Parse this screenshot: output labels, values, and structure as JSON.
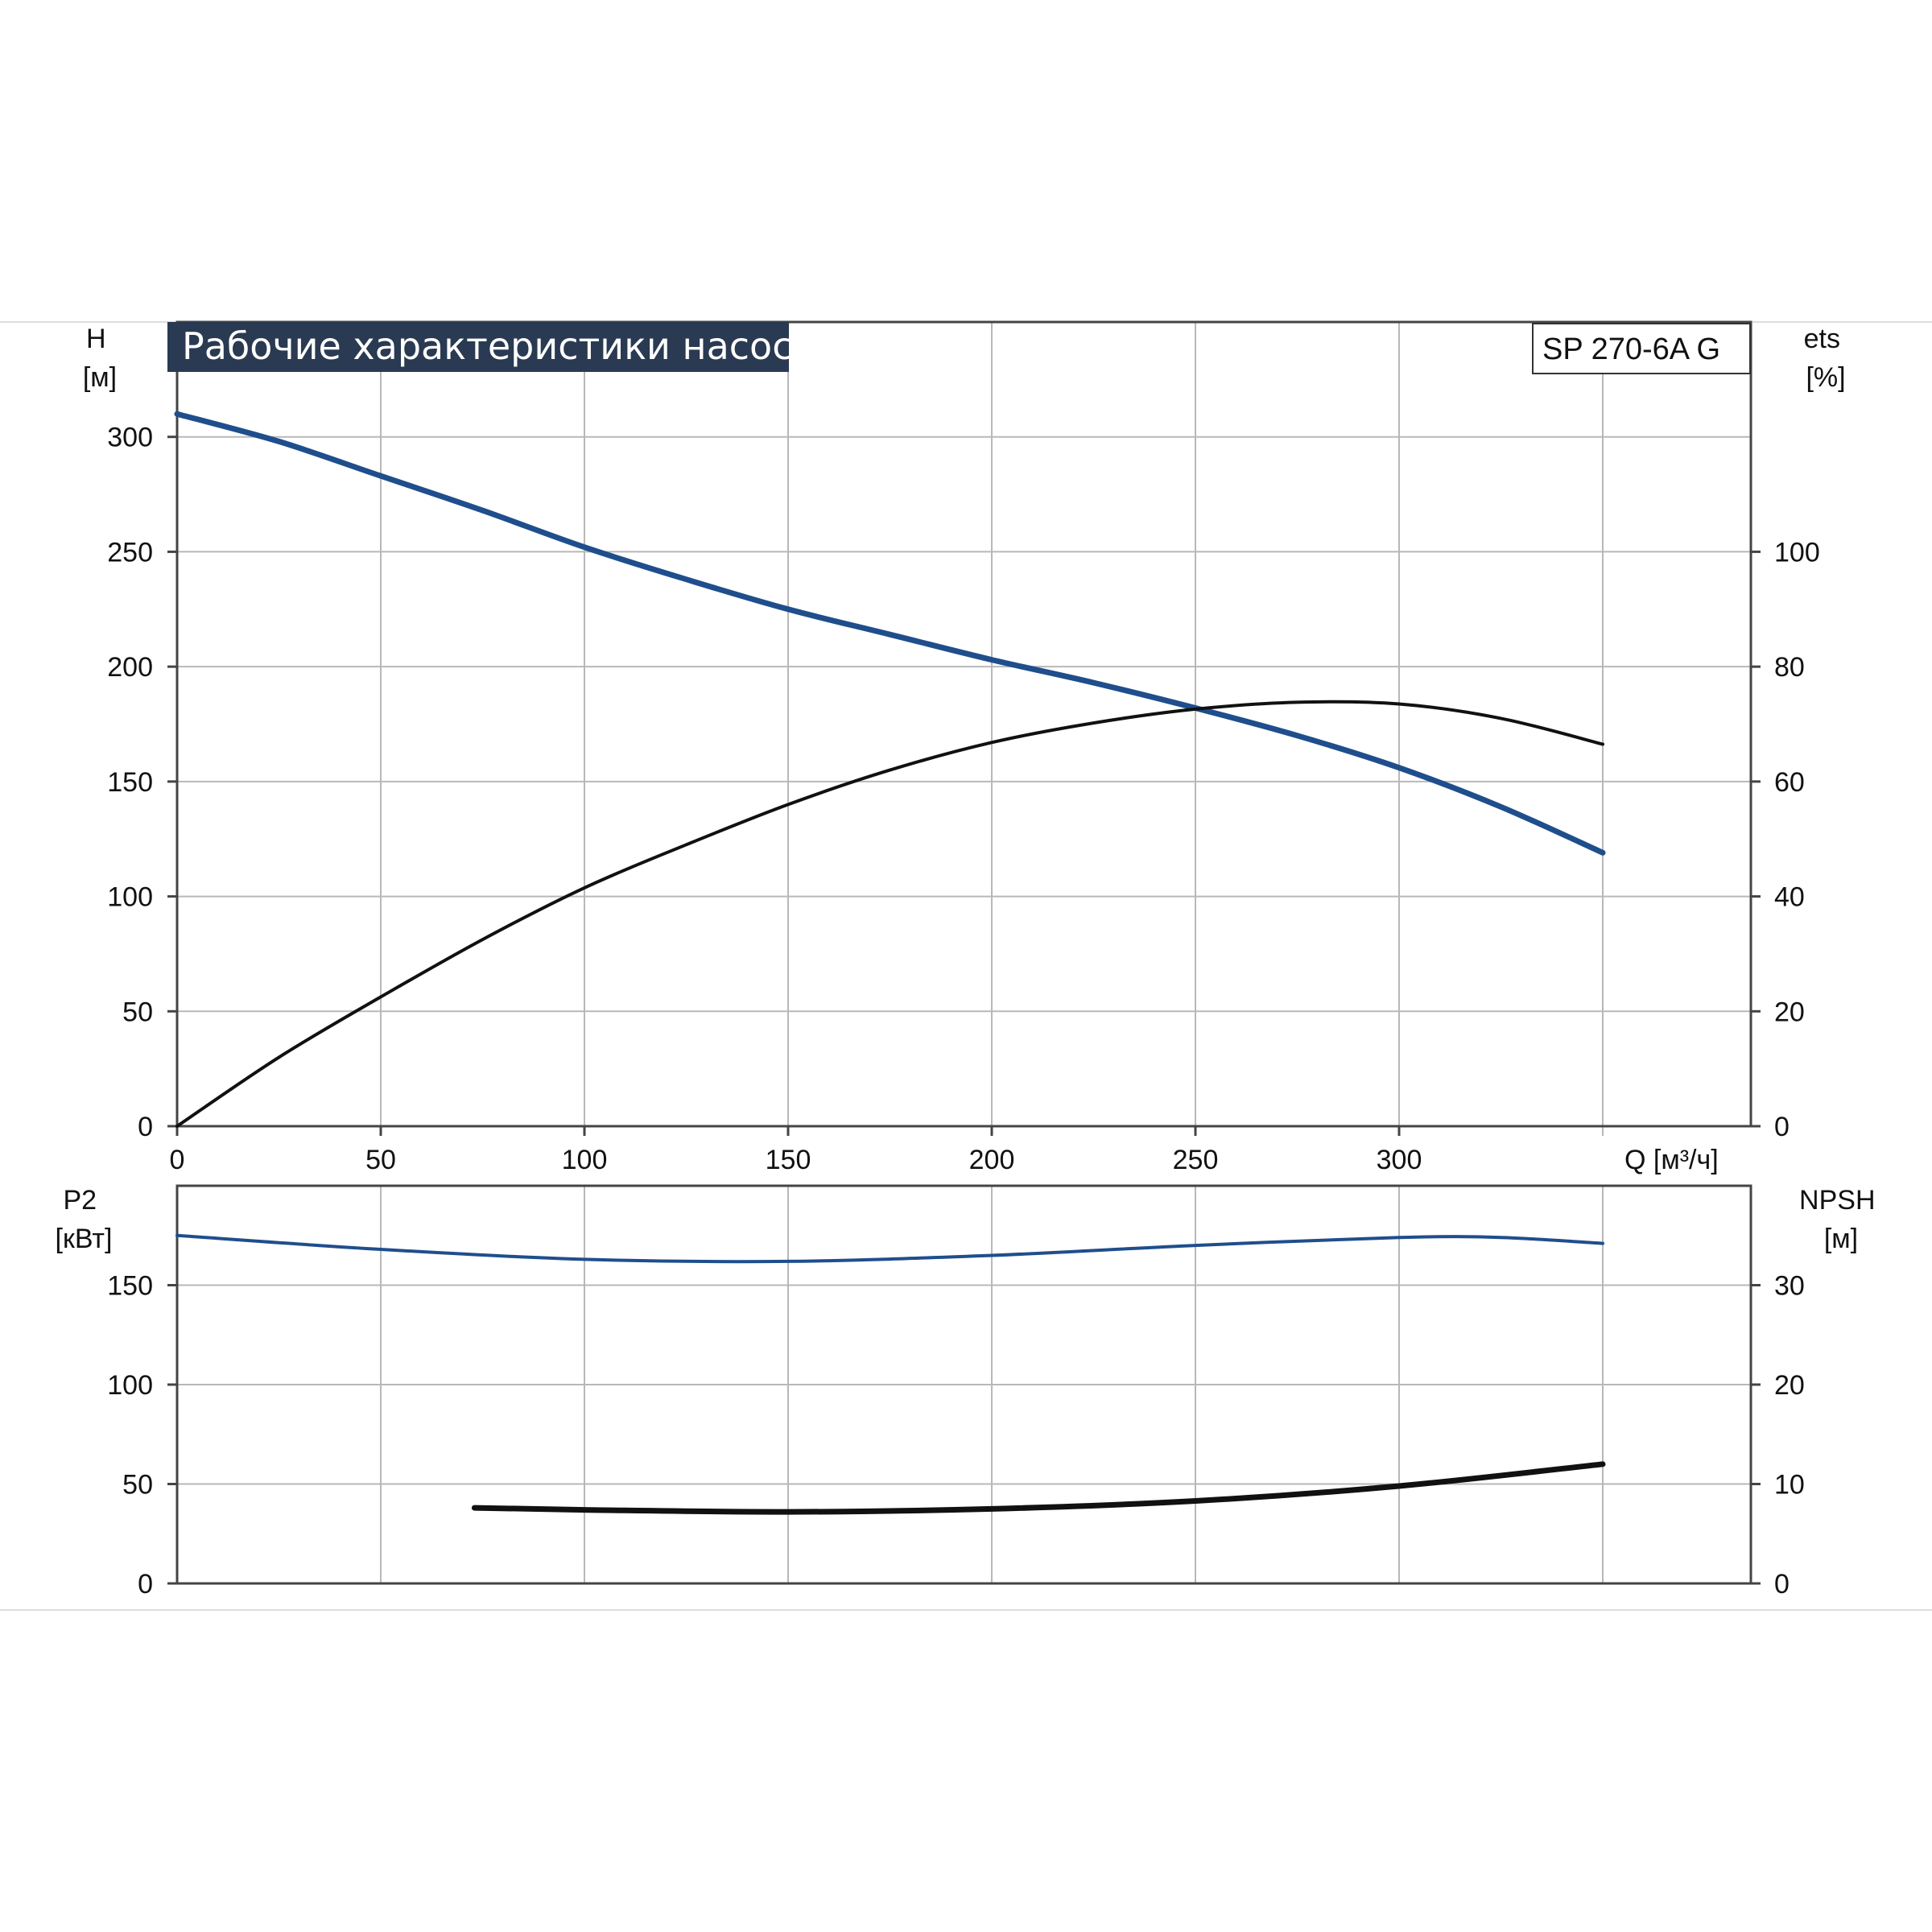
{
  "chart_data": [
    {
      "type": "line",
      "title": "Рабочие характеристики насоса",
      "model": "SP 270-6A G",
      "xlabel": "Q [м³/ч]",
      "xlim": [
        0,
        350
      ],
      "x_ticks": [
        0,
        50,
        100,
        150,
        200,
        250,
        300
      ],
      "ylabel_left": "H\n[м]",
      "ylim_left": [
        0,
        350
      ],
      "y_ticks_left": [
        0,
        50,
        100,
        150,
        200,
        250,
        300
      ],
      "ylabel_right": "ets\n[%]",
      "ylim_right": [
        0,
        140
      ],
      "y_ticks_right": [
        0,
        20,
        40,
        60,
        80,
        100
      ],
      "grid": true,
      "series": [
        {
          "axis": "left",
          "color": "#1f4e8c",
          "x": [
            0,
            25,
            50,
            75,
            100,
            125,
            150,
            175,
            200,
            225,
            250,
            275,
            300,
            325,
            350
          ],
          "y": [
            310,
            298,
            283,
            268,
            252,
            238,
            225,
            214,
            203,
            193,
            182,
            170,
            156,
            139,
            119
          ]
        },
        {
          "axis": "right",
          "color": "#111111",
          "x": [
            0,
            25,
            50,
            75,
            100,
            125,
            150,
            175,
            200,
            225,
            250,
            275,
            300,
            325,
            350
          ],
          "y": [
            0,
            12,
            22.5,
            32.5,
            41.5,
            49,
            56,
            62,
            66.8,
            70.2,
            72.6,
            73.8,
            73.5,
            71,
            66.5
          ]
        }
      ]
    },
    {
      "type": "line",
      "xlim": [
        0,
        350
      ],
      "ylabel_left": "P2\n[кВт]",
      "ylim_left": [
        0,
        200
      ],
      "y_ticks_left": [
        0,
        50,
        100,
        150
      ],
      "ylabel_right": "NPSH\n[м]",
      "ylim_right": [
        0,
        40
      ],
      "y_ticks_right": [
        0,
        10,
        20,
        30
      ],
      "grid": true,
      "series": [
        {
          "axis": "left",
          "color": "#1f4e8c",
          "x": [
            0,
            50,
            100,
            150,
            200,
            250,
            300,
            325,
            350
          ],
          "y": [
            175,
            168,
            163,
            162,
            165,
            170,
            174,
            174,
            171
          ]
        },
        {
          "axis": "right",
          "color": "#111111",
          "x": [
            73,
            100,
            150,
            200,
            250,
            300,
            350
          ],
          "y": [
            7.6,
            7.4,
            7.2,
            7.5,
            8.3,
            9.8,
            12
          ]
        }
      ]
    }
  ]
}
